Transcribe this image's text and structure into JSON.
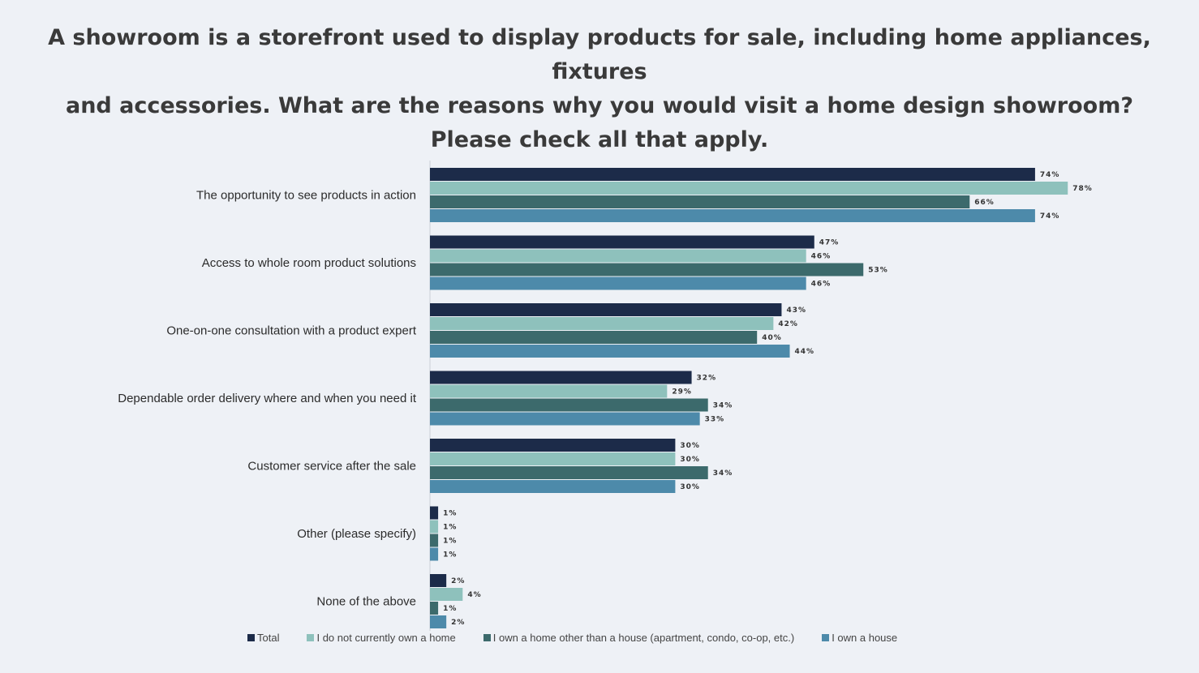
{
  "title_lines": [
    "A showroom is a storefront used to display products for sale, including home appliances, fixtures",
    "and accessories. What are the reasons why you would visit a home design showroom?",
    "Please check all that apply."
  ],
  "chart_data": {
    "type": "bar",
    "orientation": "horizontal",
    "title": "A showroom is a storefront used to display products for sale, including home appliances, fixtures and accessories. What are the reasons why you would visit a home design showroom? Please check all that apply.",
    "categories": [
      "The opportunity to see products in action",
      "Access to whole room product solutions",
      "One-on-one consultation with a product expert",
      "Dependable order delivery where and when you need it",
      "Customer service after the sale",
      "Other (please specify)",
      "None of the above"
    ],
    "series": [
      {
        "name": "Total",
        "color": "#1c2b49",
        "values": [
          74,
          47,
          43,
          32,
          30,
          1,
          2
        ]
      },
      {
        "name": "I do not currently own a home",
        "color": "#8ec1bc",
        "values": [
          78,
          46,
          42,
          29,
          30,
          1,
          4
        ]
      },
      {
        "name": "I own a home other than a house (apartment, condo, co-op, etc.)",
        "color": "#3c6a6c",
        "values": [
          66,
          53,
          40,
          34,
          34,
          1,
          1
        ]
      },
      {
        "name": "I own a house",
        "color": "#4d8aaa",
        "values": [
          74,
          46,
          44,
          33,
          30,
          1,
          2
        ]
      }
    ],
    "value_suffix": "%",
    "xlim": [
      0,
      100
    ],
    "grid": false,
    "legend_position": "bottom"
  }
}
